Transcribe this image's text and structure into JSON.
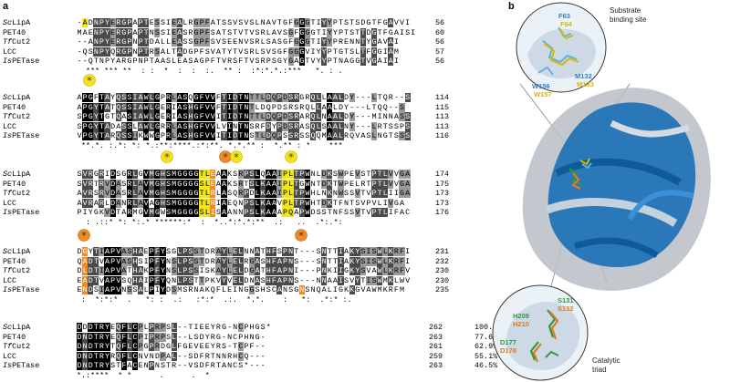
{
  "panels": {
    "a": "a",
    "b": "b"
  },
  "alignment": {
    "blocks": [
      {
        "rows": [
          {
            "name": "ScLipA",
            "italic_prefix": "Sc",
            "rest": "LipA",
            "seq": "-ADNPYERGPAPTESSIEALRGPFATSSVSVSLNAVTGFGGGTIYYPTSTSDGTFGAVVI",
            "end": "56"
          },
          {
            "name": "PET40",
            "italic_prefix": "",
            "rest": "PET40",
            "seq": "MAENPYERGPAPTNSSIEASRGPFSATSTVTVSRLAVSGFGGGTIYYPTSTTDGTFGAISI",
            "end": "60"
          },
          {
            "name": "TfCut2",
            "italic_prefix": "Tf",
            "rest": "Cut2",
            "seq": "--ANPYERGPNPTDALLEASSGPFSVSEENVSRLSASGFGGGTIYYPRENNTYGAVAI",
            "end": "56"
          },
          {
            "name": "LCC",
            "italic_prefix": "",
            "rest": "LCC",
            "seq": "-QSNPYQRGPNPTRSALTADGPFSVATYTVSRLSVSGFGGGVIYYPTGTSLTFGGIAM",
            "end": "57"
          },
          {
            "name": "IsPETase",
            "italic_prefix": "Is",
            "rest": "PETase",
            "seq": "--QTNPYARGPNPTAASLEASAGPFTVRSFTVSRPSGYGAGTVYYPTNAGGTVGAIAI",
            "end": "56"
          }
        ],
        "consensus": "  *** *** **  : :  *  :  :  :.  ** :  :*:*.*.:***   *. : ."
      },
      {
        "rows": [
          {
            "name": "ScLipA",
            "italic_prefix": "Sc",
            "rest": "LipA",
            "seq": "APGFTAYQSSIAWLGPRLASQGFVVFTIDTNTTLDQPDSRGRQLLAALDY---LTQR--S",
            "end": "114"
          },
          {
            "name": "PET40",
            "italic_prefix": "",
            "rest": "PET40",
            "seq": "APGYTATQSSIAWLGERIASHGFVVFTIDTNTLDQPDSRSRQLLAALDY---LTQQ--S",
            "end": "115"
          },
          {
            "name": "TfCut2",
            "italic_prefix": "Tf",
            "rest": "Cut2",
            "seq": "SPGYTGTQASIAWLGERIASHGFVVITIDTNTTLDQPDSRARQLNAALDY---MINNASS",
            "end": "113"
          },
          {
            "name": "LCC",
            "italic_prefix": "",
            "rest": "LCC",
            "seq": "SPGYTADASSLAWLGRRLASHGFVVLVINTNSRFDYPDSRASQLSAALNY---LRTSSPS",
            "end": "113"
          },
          {
            "name": "IsPETase",
            "italic_prefix": "Is",
            "rest": "PETase",
            "seq": "VPGYTARQSSIKWWGPRLASHGFVVITIDTNSTLDQPSSRSSQQMAALRQVASLNGTSSS",
            "end": "116"
          }
        ],
        "consensus": " **.*. :.*: *: *.:**:****.:*:**. *.*.** :  *.** : *    ***   "
      },
      {
        "rows": [
          {
            "name": "ScLipA",
            "italic_prefix": "Sc",
            "rest": "LipA",
            "seq": "SVRGRIDSGRLGVMGHSMGGGGTLEAAKSRPSLQAAIPLTPWNLDKSWPEVSTPTLVVGA",
            "end": "174"
          },
          {
            "name": "PET40",
            "italic_prefix": "",
            "rest": "PET40",
            "seq": "SVRTRVDASRLAVMGHSMGGGGSLEAAKSRTSLKAAIPLTGWNTDKTWPELRTPTLVVGA",
            "end": "175"
          },
          {
            "name": "TfCut2",
            "italic_prefix": "Tf",
            "rest": "Cut2",
            "seq": "AVRSRVDASRLAVMGHSMGGGGTLRLASQRPDLKAAIPLTPWHLNKNWSSVTVPTLIIGA",
            "end": "173"
          },
          {
            "name": "LCC",
            "italic_prefix": "",
            "rest": "LCC",
            "seq": "AVRARLDANRLAVAGHSMGGGGTLRIAEQNPSLKAAVPLTPWHTDKTFNTSVPVLIVGA",
            "end": "173"
          },
          {
            "name": "IsPETase",
            "italic_prefix": "Is",
            "rest": "PETase",
            "seq": "PIYGKVDTARMGVMGWSMGGGGSLISAANNPSLKAAAPQAPWDSSTNFSSVTVPTLIFAC",
            "end": "176"
          }
        ],
        "consensus": "  : .::* *: *:.* ******:*  :  *..*:*.*:**  .:   ..  .*:.*:  "
      },
      {
        "rows": [
          {
            "name": "ScLipA",
            "italic_prefix": "Sc",
            "rest": "LipA",
            "seq": "DGYTIAPVASHAEPFYSGLPSSTDRAYLELNNATHFSPNT---SNTTIAKYSISWLKRFI",
            "end": "231"
          },
          {
            "name": "PET40",
            "italic_prefix": "",
            "rest": "PET40",
            "seq": "QADTVAPVASHSIPFYNSLPSSTDRAYLELRGASHFAPNS---SNTTIAKYSISWLKRFI",
            "end": "232"
          },
          {
            "name": "TfCut2",
            "italic_prefix": "Tf",
            "rest": "Cut2",
            "seq": "DLDTIAPVATHAKPFYNSLPSSISKAYLELDGATHFAPNI---PNKIIGKYSVAWLKRFV",
            "end": "230"
          },
          {
            "name": "LCC",
            "italic_prefix": "",
            "rest": "LCC",
            "seq": "EADTVAPVSQHAIPFYQNLPSTTPKVYVELDNASHFAPNS---NNAAISVYTISWMKLWV",
            "end": "230"
          },
          {
            "name": "IsPETase",
            "italic_prefix": "Is",
            "rest": "PETase",
            "seq": "ENDSIAPVNSSALPIYDSMSRNAKQFLEINGGSHSCANSGNSNQALIGKKGVAWMKRFM",
            "end": "235"
          }
        ],
        "consensus": " :  *:*:*  .   *: :  .:   :*:*  .:.  *.*.    :   *:  .*:* :.  "
      },
      {
        "rows": [
          {
            "name": "ScLipA",
            "italic_prefix": "Sc",
            "rest": "LipA",
            "seq": "DDDTRYEQFLCPLPRPSL--TIEEYRG-NCPHGS*",
            "end": "262",
            "pct": "100.0%"
          },
          {
            "name": "PET40",
            "italic_prefix": "",
            "rest": "PET40",
            "seq": "DNDTRYEQFLCPIPRPSL--LSDYRG-NCPHNG-",
            "end": "263",
            "pct": "77.6%"
          },
          {
            "name": "TfCut2",
            "italic_prefix": "Tf",
            "rest": "Cut2",
            "seq": "DNDTRYTQFLCPGPRDGLFGEVEEYRS-TCPF--",
            "end": "261",
            "pct": "62.9%"
          },
          {
            "name": "LCC",
            "italic_prefix": "",
            "rest": "LCC",
            "seq": "DNDTRYRQFLCNVNDPAL--SDFRTNNRHCQ---",
            "end": "259",
            "pct": "55.1%"
          },
          {
            "name": "IsPETase",
            "italic_prefix": "Is",
            "rest": "PETase",
            "seq": "DNDTRYSTFACENPNSTR--VSDFRTANCS*---",
            "end": "263",
            "pct": "46.5%"
          }
        ],
        "consensus": "*.:****  * *      .      .  *   "
      }
    ]
  },
  "structure": {
    "top_inset_caption": [
      "Substrate",
      "binding site"
    ],
    "bottom_inset_caption": [
      "Catalytic",
      "triad"
    ],
    "top_labels": [
      {
        "text": "F63",
        "color": "#2a7fc9"
      },
      {
        "text": "F64",
        "color": "#d6b800"
      },
      {
        "text": "M132",
        "color": "#2a7fc9"
      },
      {
        "text": "M133",
        "color": "#d6b800"
      },
      {
        "text": "W156",
        "color": "#2a7fc9"
      },
      {
        "text": "W157",
        "color": "#d6b800"
      }
    ],
    "bottom_labels": [
      {
        "text": "S131",
        "color": "#2d9a3e"
      },
      {
        "text": "S132",
        "color": "#e07a1a"
      },
      {
        "text": "H209",
        "color": "#2d9a3e"
      },
      {
        "text": "H210",
        "color": "#e07a1a"
      },
      {
        "text": "D177",
        "color": "#2d9a3e"
      },
      {
        "text": "D178",
        "color": "#e07a1a"
      }
    ],
    "colors": {
      "protein_blue": "#1a6fb5",
      "protein_grey": "#b7bec6",
      "asterisk_yellow": "#f3e11a",
      "asterisk_orange": "#f08a24"
    }
  }
}
